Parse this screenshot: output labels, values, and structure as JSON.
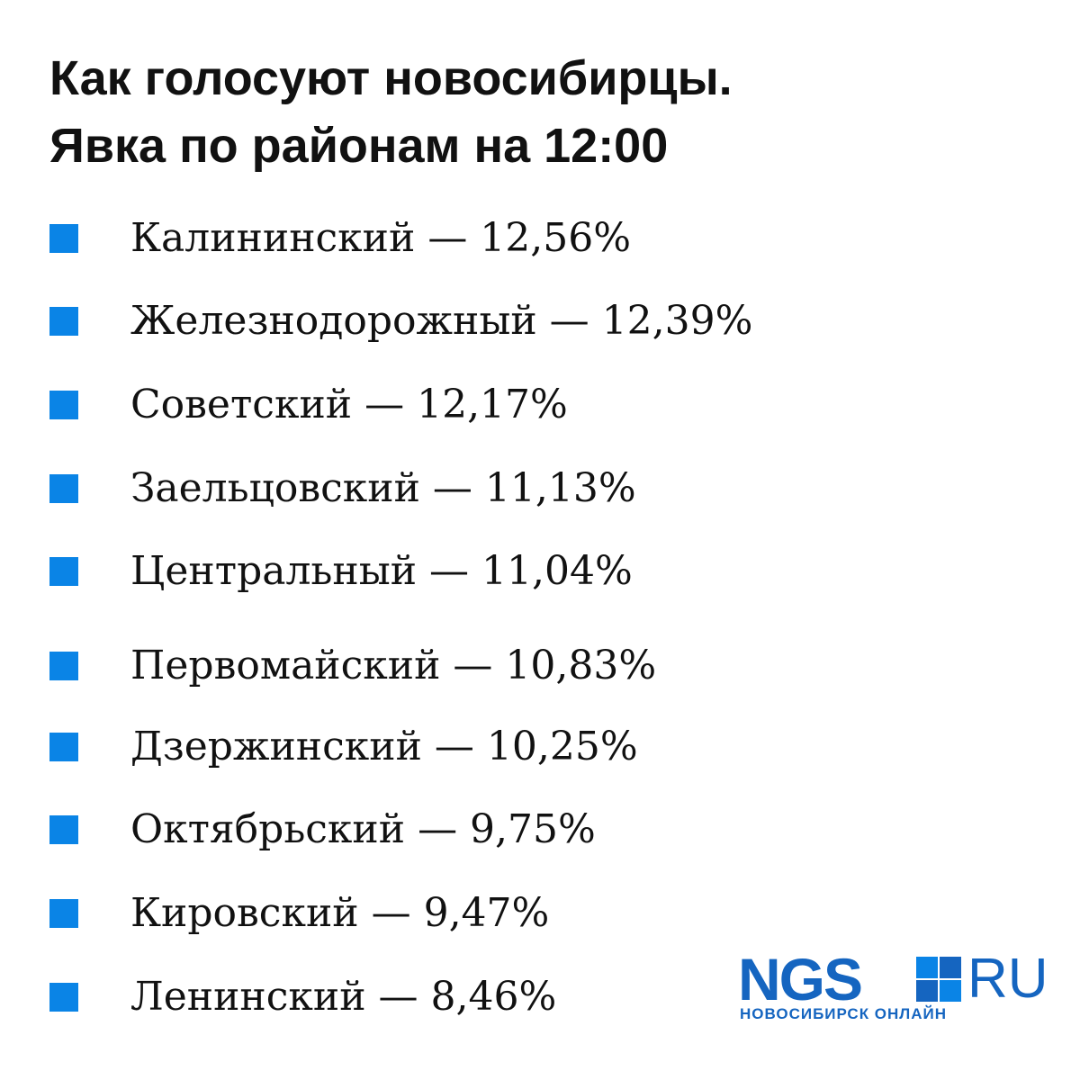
{
  "header": {
    "title_lines": [
      "Как голосуют новосибирцы.",
      "Явка по районам на 12:00"
    ]
  },
  "items": [
    "Калининский — 12,56%",
    "Железнодорожный — 12,39%",
    "Советский — 12,17%",
    "Заельцовский — 11,13%",
    "Центральный — 11,04%",
    "Первомайский — 10,83%",
    "Дзержинский — 10,25%",
    "Октябрьский — 9,75%",
    "Кировский — 9,47%",
    "Ленинский — 8,46%"
  ],
  "logo": {
    "brand": "NGS",
    "domain": "RU",
    "tagline": "НОВОСИБИРСК ОНЛАЙН"
  }
}
